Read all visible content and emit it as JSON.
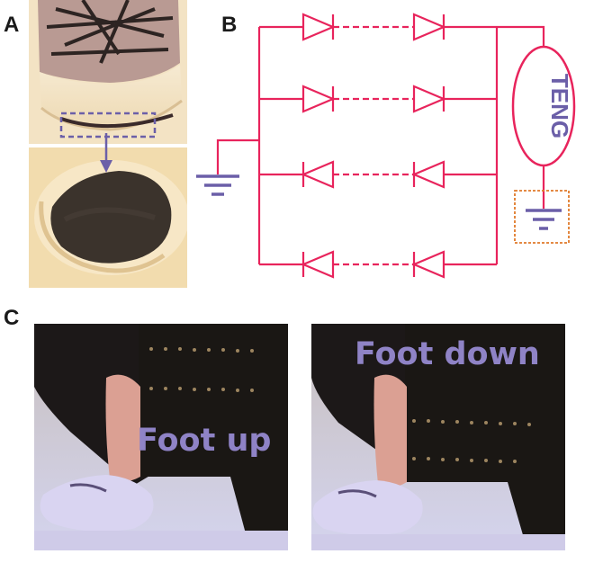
{
  "panels": {
    "a": {
      "label": "A"
    },
    "b": {
      "label": "B",
      "teng_label": "TENG"
    },
    "c": {
      "label": "C",
      "left_caption": "Foot up",
      "right_caption": "Foot down"
    }
  },
  "colors": {
    "circuit": "#e8245c",
    "accent": "#6b5fa8",
    "ground": "#6b5fa8",
    "box": "#e07a2a",
    "caption": "#8f83c6"
  },
  "icons": [
    "diode-icon",
    "ground-icon",
    "arrow-down-icon"
  ]
}
